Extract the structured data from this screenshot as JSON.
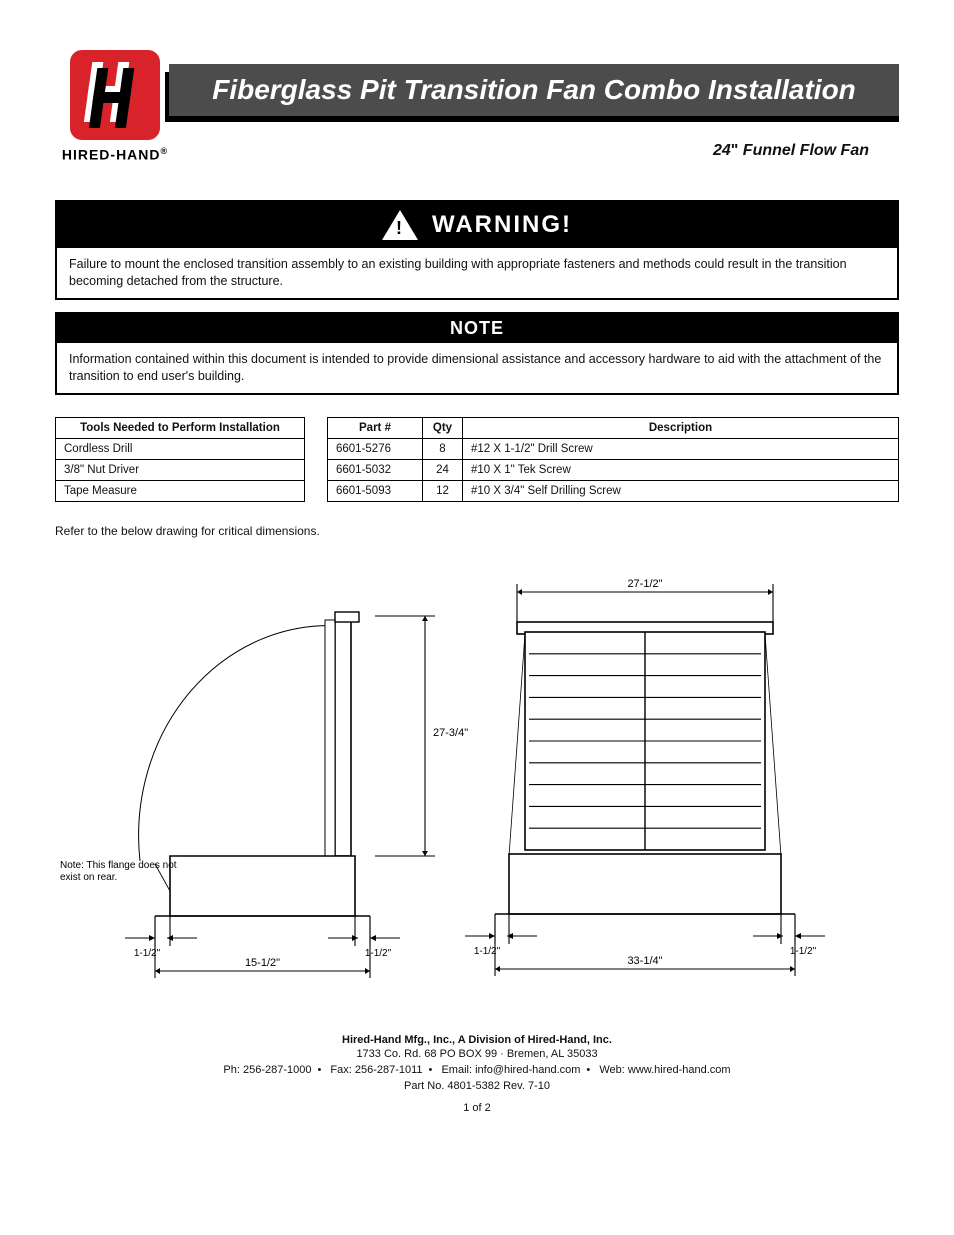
{
  "brand": {
    "name": "HIRED-HAND",
    "reg": "®"
  },
  "title": "Fiberglass Pit Transition Fan Combo Installation",
  "subtitle_size": "24",
  "subtitle_dq": "\"",
  "subtitle_rest": " Funnel Flow Fan",
  "warning": {
    "head": "WARNING!",
    "body": "Failure to mount the enclosed transition assembly to an existing building with appropriate fasteners and methods could result in the transition becoming detached from the structure."
  },
  "note": {
    "head": "NOTE",
    "body": "Information contained within this document is intended to provide dimensional assistance and accessory hardware to aid with the attachment of the transition to end user's building."
  },
  "tools": {
    "header": "Tools Needed to Perform Installation",
    "rows": [
      "Cordless Drill",
      "3/8\" Nut Driver",
      "Tape Measure"
    ]
  },
  "parts": {
    "h1": "Part #",
    "h2": "Qty",
    "h3": "Description",
    "rows": [
      {
        "part": "6601-5276",
        "qty": "8",
        "desc": "#12 X 1-1/2\" Drill Screw"
      },
      {
        "part": "6601-5032",
        "qty": "24",
        "desc": "#10 X 1\" Tek Screw"
      },
      {
        "part": "6601-5093",
        "qty": "12",
        "desc": "#10 X 3/4\" Self Drilling Screw"
      }
    ]
  },
  "ref_label": "Refer to the below drawing for critical dimensions.",
  "dims": {
    "left": {
      "h_label": "27-3/4\"",
      "flange_left": "1-1/2\"",
      "flange_right": "1-1/2\"",
      "base_width": "15-1/2\"",
      "note_top": "Note: This flange does not",
      "note_bot": "exist on rear."
    },
    "right": {
      "top_width": "27-1/2\"",
      "flange_left": "1-1/2\"",
      "flange_right": "1-1/2\"",
      "base_width": "33-1/4\""
    },
    "styling": {
      "stroke": "#000000",
      "stroke_w": 1.6,
      "dim_stroke_w": 1.1,
      "hood_stroke_w": 1.0,
      "bg": "#ffffff"
    }
  },
  "footer": {
    "row1": "Hired-Hand Mfg., Inc., A Division of Hired-Hand, Inc.",
    "row2": "1733 Co. Rd. 68 PO BOX 99 · Bremen, AL 35033",
    "row3_parts": [
      "Ph: 256-287-1000",
      "Fax: 256-287-1011",
      "Email: info@hired-hand.com",
      "Web: www.hired-hand.com"
    ],
    "manual": "Part No. 4801-5382 Rev. 7-10",
    "page": "1 of 2"
  }
}
